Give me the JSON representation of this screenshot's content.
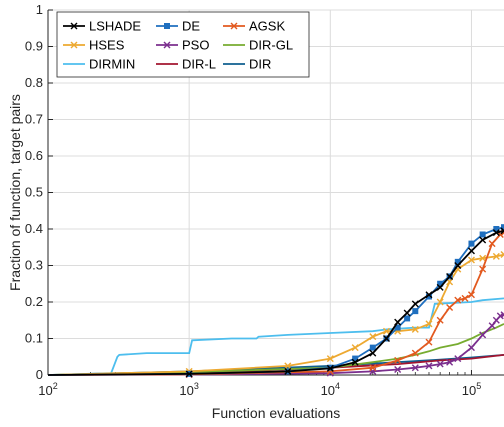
{
  "chart_data": {
    "type": "line",
    "xlabel": "Function evaluations",
    "ylabel": "Fraction of function, target pairs",
    "xscale": "log",
    "xlim": [
      100,
      170000
    ],
    "ylim": [
      0,
      1
    ],
    "grid": true,
    "legend_position": "top-left",
    "legend_columns": 3,
    "xticks": [
      100,
      1000,
      10000,
      100000
    ],
    "xtick_labels": [
      {
        "base": "10",
        "exp": "2"
      },
      {
        "base": "10",
        "exp": "3"
      },
      {
        "base": "10",
        "exp": "4"
      },
      {
        "base": "10",
        "exp": "5"
      }
    ],
    "yticks": [
      "0",
      "0.1",
      "0.2",
      "0.3",
      "0.4",
      "0.5",
      "0.6",
      "0.7",
      "0.8",
      "0.9",
      "1"
    ],
    "series": [
      {
        "name": "LSHADE",
        "color": "#000000",
        "marker": "cross",
        "x": [
          100,
          1000,
          5000,
          10000,
          15000,
          20000,
          25000,
          30000,
          35000,
          40000,
          50000,
          60000,
          70000,
          80000,
          100000,
          120000,
          150000,
          170000
        ],
        "y": [
          0,
          0.003,
          0.01,
          0.018,
          0.035,
          0.06,
          0.1,
          0.145,
          0.17,
          0.195,
          0.22,
          0.24,
          0.27,
          0.3,
          0.34,
          0.37,
          0.39,
          0.395
        ]
      },
      {
        "name": "DE",
        "color": "#1f6fbf",
        "marker": "square",
        "x": [
          100,
          1000,
          5000,
          10000,
          15000,
          20000,
          25000,
          30000,
          35000,
          40000,
          50000,
          60000,
          70000,
          80000,
          100000,
          120000,
          150000,
          170000
        ],
        "y": [
          0,
          0.003,
          0.01,
          0.02,
          0.045,
          0.075,
          0.1,
          0.13,
          0.155,
          0.175,
          0.215,
          0.25,
          0.27,
          0.31,
          0.36,
          0.385,
          0.4,
          0.405
        ]
      },
      {
        "name": "AGSK",
        "color": "#e2591f",
        "marker": "cross",
        "x": [
          100,
          1000,
          10000,
          20000,
          30000,
          40000,
          50000,
          60000,
          70000,
          80000,
          90000,
          100000,
          120000,
          140000,
          160000,
          170000
        ],
        "y": [
          0,
          0.002,
          0.01,
          0.02,
          0.04,
          0.06,
          0.09,
          0.15,
          0.185,
          0.205,
          0.21,
          0.22,
          0.29,
          0.36,
          0.385,
          0.39
        ]
      },
      {
        "name": "HSES",
        "color": "#eda931",
        "marker": "cross",
        "x": [
          100,
          1000,
          5000,
          10000,
          15000,
          20000,
          25000,
          30000,
          40000,
          50000,
          60000,
          70000,
          80000,
          100000,
          120000,
          150000,
          170000
        ],
        "y": [
          0,
          0.01,
          0.025,
          0.045,
          0.075,
          0.105,
          0.12,
          0.12,
          0.125,
          0.14,
          0.2,
          0.255,
          0.29,
          0.315,
          0.32,
          0.325,
          0.33
        ]
      },
      {
        "name": "PSO",
        "color": "#7b2f8e",
        "marker": "cross",
        "x": [
          100,
          1000,
          10000,
          20000,
          30000,
          40000,
          50000,
          60000,
          70000,
          80000,
          100000,
          120000,
          140000,
          150000,
          160000,
          170000
        ],
        "y": [
          0,
          0.001,
          0.005,
          0.01,
          0.015,
          0.02,
          0.025,
          0.03,
          0.035,
          0.045,
          0.075,
          0.11,
          0.135,
          0.15,
          0.162,
          0.165
        ]
      },
      {
        "name": "DIR-GL",
        "color": "#77ac30",
        "marker": "none",
        "x": [
          100,
          1000,
          10000,
          20000,
          30000,
          40000,
          50000,
          60000,
          80000,
          100000,
          120000,
          150000,
          170000
        ],
        "y": [
          0,
          0.008,
          0.02,
          0.035,
          0.045,
          0.055,
          0.065,
          0.075,
          0.085,
          0.1,
          0.115,
          0.13,
          0.14
        ]
      },
      {
        "name": "DIRMIN",
        "color": "#4dbeee",
        "marker": "none",
        "x": [
          100,
          280,
          310,
          320,
          500,
          1000,
          1050,
          2000,
          3000,
          3100,
          5000,
          10000,
          20000,
          25000,
          40000,
          50000,
          55000,
          100000,
          120000,
          170000
        ],
        "y": [
          0,
          0.005,
          0.05,
          0.055,
          0.06,
          0.06,
          0.095,
          0.1,
          0.1,
          0.105,
          0.11,
          0.115,
          0.12,
          0.125,
          0.13,
          0.13,
          0.195,
          0.2,
          0.205,
          0.21
        ]
      },
      {
        "name": "DIR-L",
        "color": "#a2142f",
        "marker": "none",
        "x": [
          100,
          1000,
          10000,
          30000,
          60000,
          100000,
          170000
        ],
        "y": [
          0,
          0.005,
          0.02,
          0.03,
          0.04,
          0.045,
          0.055
        ]
      },
      {
        "name": "DIR",
        "color": "#0f5f8f",
        "marker": "none",
        "x": [
          100,
          1000,
          10000,
          30000,
          60000,
          100000,
          170000
        ],
        "y": [
          0,
          0.01,
          0.025,
          0.035,
          0.042,
          0.048,
          0.055
        ]
      }
    ]
  }
}
